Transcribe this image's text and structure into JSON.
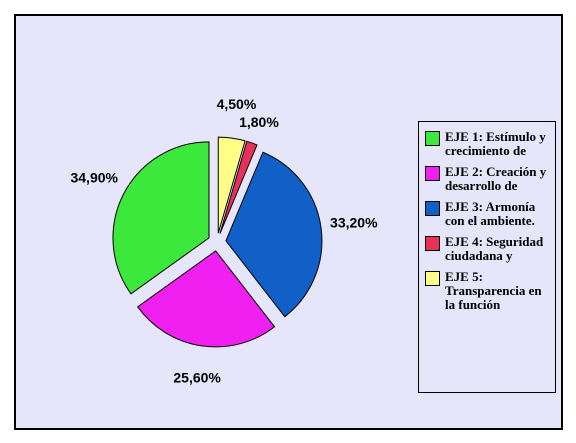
{
  "chart_data": {
    "type": "pie",
    "categories": [
      "EJE 1: Estímulo y crecimiento de",
      "EJE 2: Creación y desarrollo de",
      "EJE 3: Armonía con el ambiente.",
      "EJE 4: Seguridad ciudadana y",
      "EJE 5: Transparencia en la función"
    ],
    "values": [
      34.9,
      25.6,
      33.2,
      1.8,
      4.5
    ],
    "value_labels": [
      "34,90%",
      "25,60%",
      "33,20%",
      "1,80%",
      "4,50%"
    ],
    "colors": [
      "#3de83d",
      "#f020f0",
      "#1060c8",
      "#e8305a",
      "#ffff88"
    ],
    "legend": "right"
  }
}
